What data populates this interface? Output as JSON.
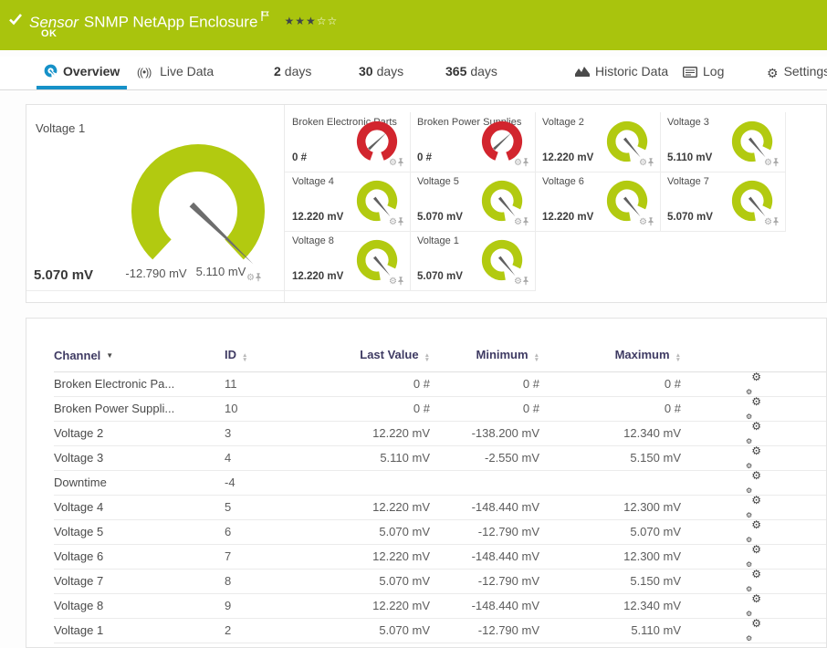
{
  "colors": {
    "header_green": "#a9c40d",
    "gauge_green": "#b2ca10",
    "status_red": "#d2252e",
    "accent_blue": "#1691c8"
  },
  "header": {
    "kind": "Sensor",
    "title": "SNMP NetApp Enclosure",
    "status": "OK",
    "priority_filled": 3,
    "priority_total": 5
  },
  "tabs": [
    {
      "label": "Overview",
      "icon": "gauge-icon",
      "active": true
    },
    {
      "label": "Live Data",
      "icon": "live-icon",
      "active": false
    },
    {
      "num": "2",
      "label": "days",
      "active": false
    },
    {
      "num": "30",
      "label": "days",
      "active": false
    },
    {
      "num": "365",
      "label": "days",
      "active": false
    },
    {
      "label": "Historic Data",
      "icon": "chart-icon",
      "active": false
    },
    {
      "label": "Log",
      "icon": "log-icon",
      "active": false
    },
    {
      "label": "Settings",
      "icon": "gear-icon",
      "active": false
    }
  ],
  "main_gauge": {
    "label": "Voltage 1",
    "value": "5.070 mV",
    "min_label": "-12.790 mV",
    "max_label": "5.110 mV",
    "status": "ok"
  },
  "small_gauges": [
    {
      "label": "Broken Electronic Parts",
      "value": "0 #",
      "status": "error"
    },
    {
      "label": "Broken Power Supplies",
      "value": "0 #",
      "status": "error"
    },
    {
      "label": "Voltage 2",
      "value": "12.220 mV",
      "status": "ok"
    },
    {
      "label": "Voltage 3",
      "value": "5.110 mV",
      "status": "ok"
    },
    {
      "label": "Voltage 4",
      "value": "12.220 mV",
      "status": "ok"
    },
    {
      "label": "Voltage 5",
      "value": "5.070 mV",
      "status": "ok"
    },
    {
      "label": "Voltage 6",
      "value": "12.220 mV",
      "status": "ok"
    },
    {
      "label": "Voltage 7",
      "value": "5.070 mV",
      "status": "ok"
    },
    {
      "label": "Voltage 8",
      "value": "12.220 mV",
      "status": "ok"
    },
    {
      "label": "Voltage 1",
      "value": "5.070 mV",
      "status": "ok"
    }
  ],
  "table": {
    "sorted_column": "Channel",
    "sort_direction": "desc",
    "columns": [
      "Channel",
      "ID",
      "Last Value",
      "Minimum",
      "Maximum"
    ],
    "rows": [
      [
        "Broken Electronic Pa...",
        "11",
        "0 #",
        "0 #",
        "0 #"
      ],
      [
        "Broken Power Suppli...",
        "10",
        "0 #",
        "0 #",
        "0 #"
      ],
      [
        "Voltage 2",
        "3",
        "12.220 mV",
        "-138.200 mV",
        "12.340 mV"
      ],
      [
        "Voltage 3",
        "4",
        "5.110 mV",
        "-2.550 mV",
        "5.150 mV"
      ],
      [
        "Downtime",
        "-4",
        "",
        "",
        ""
      ],
      [
        "Voltage 4",
        "5",
        "12.220 mV",
        "-148.440 mV",
        "12.300 mV"
      ],
      [
        "Voltage 5",
        "6",
        "5.070 mV",
        "-12.790 mV",
        "5.070 mV"
      ],
      [
        "Voltage 6",
        "7",
        "12.220 mV",
        "-148.440 mV",
        "12.300 mV"
      ],
      [
        "Voltage 7",
        "8",
        "5.070 mV",
        "-12.790 mV",
        "5.150 mV"
      ],
      [
        "Voltage 8",
        "9",
        "12.220 mV",
        "-148.440 mV",
        "12.340 mV"
      ],
      [
        "Voltage 1",
        "2",
        "5.070 mV",
        "-12.790 mV",
        "5.110 mV"
      ]
    ]
  }
}
